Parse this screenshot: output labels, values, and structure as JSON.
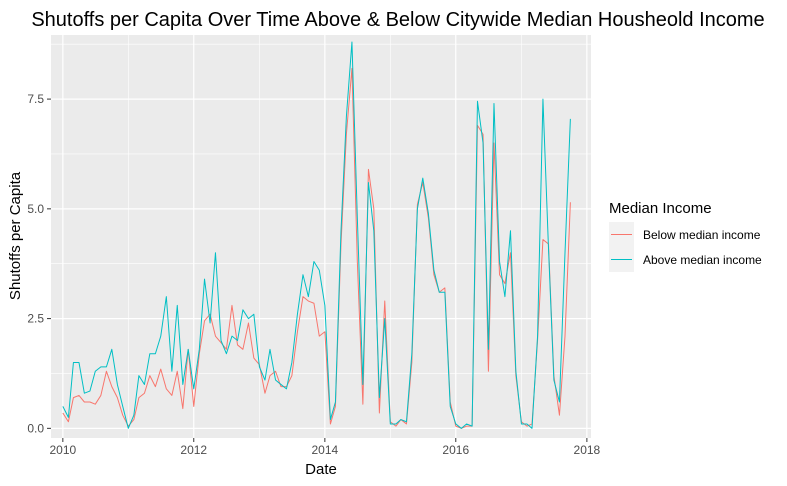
{
  "chart_data": {
    "type": "line",
    "title": "Shutoffs per Capita Over Time Above & Below Citywide Median Housheold Income",
    "xlabel": "Date",
    "ylabel": "Shutoffs per Capita",
    "xlim": [
      "2009-10-27",
      "2018-01-24"
    ],
    "ylim": [
      -0.22,
      8.96
    ],
    "x_ticks": [
      {
        "value": "2010-01-01",
        "label": "2010"
      },
      {
        "value": "2012-01-01",
        "label": "2012"
      },
      {
        "value": "2014-01-01",
        "label": "2014"
      },
      {
        "value": "2016-01-01",
        "label": "2016"
      },
      {
        "value": "2018-01-01",
        "label": "2018"
      }
    ],
    "y_ticks": [
      {
        "value": 0,
        "label": "0.0"
      },
      {
        "value": 2.5,
        "label": "2.5"
      },
      {
        "value": 5,
        "label": "5.0"
      },
      {
        "value": 7.5,
        "label": "7.5"
      }
    ],
    "grid": true,
    "background": "#ebebeb",
    "legend": {
      "title": "Median Income",
      "placement": "right"
    },
    "series": [
      {
        "name": "Below median income",
        "color": "#F8766D",
        "points": [
          [
            "2010-01-01",
            0.35
          ],
          [
            "2010-02-01",
            0.15
          ],
          [
            "2010-03-01",
            0.7
          ],
          [
            "2010-04-01",
            0.75
          ],
          [
            "2010-05-01",
            0.6
          ],
          [
            "2010-06-01",
            0.6
          ],
          [
            "2010-07-01",
            0.55
          ],
          [
            "2010-08-01",
            0.75
          ],
          [
            "2010-09-01",
            1.3
          ],
          [
            "2010-10-01",
            0.95
          ],
          [
            "2010-11-01",
            0.7
          ],
          [
            "2010-12-01",
            0.3
          ],
          [
            "2011-01-01",
            0.05
          ],
          [
            "2011-02-01",
            0.2
          ],
          [
            "2011-03-01",
            0.7
          ],
          [
            "2011-04-01",
            0.8
          ],
          [
            "2011-05-01",
            1.2
          ],
          [
            "2011-06-01",
            0.95
          ],
          [
            "2011-07-01",
            1.35
          ],
          [
            "2011-08-01",
            0.9
          ],
          [
            "2011-09-01",
            0.75
          ],
          [
            "2011-10-01",
            1.3
          ],
          [
            "2011-11-01",
            0.45
          ],
          [
            "2011-12-01",
            1.8
          ],
          [
            "2012-01-01",
            0.5
          ],
          [
            "2012-02-01",
            1.7
          ],
          [
            "2012-03-01",
            2.45
          ],
          [
            "2012-04-01",
            2.6
          ],
          [
            "2012-05-01",
            2.1
          ],
          [
            "2012-06-01",
            1.95
          ],
          [
            "2012-07-01",
            1.8
          ],
          [
            "2012-08-01",
            2.8
          ],
          [
            "2012-09-01",
            1.9
          ],
          [
            "2012-10-01",
            1.8
          ],
          [
            "2012-11-01",
            2.4
          ],
          [
            "2012-12-01",
            1.6
          ],
          [
            "2013-01-01",
            1.45
          ],
          [
            "2013-02-01",
            0.8
          ],
          [
            "2013-03-01",
            1.2
          ],
          [
            "2013-04-01",
            1.3
          ],
          [
            "2013-05-01",
            0.95
          ],
          [
            "2013-06-01",
            0.95
          ],
          [
            "2013-07-01",
            1.2
          ],
          [
            "2013-08-01",
            2.2
          ],
          [
            "2013-09-01",
            3.0
          ],
          [
            "2013-10-01",
            2.9
          ],
          [
            "2013-11-01",
            2.85
          ],
          [
            "2013-12-01",
            2.1
          ],
          [
            "2014-01-01",
            2.2
          ],
          [
            "2014-02-01",
            0.1
          ],
          [
            "2014-03-01",
            0.5
          ],
          [
            "2014-04-01",
            4.2
          ],
          [
            "2014-05-01",
            6.7
          ],
          [
            "2014-06-01",
            8.2
          ],
          [
            "2014-07-01",
            3.8
          ],
          [
            "2014-08-01",
            0.55
          ],
          [
            "2014-09-01",
            5.9
          ],
          [
            "2014-10-01",
            5.0
          ],
          [
            "2014-11-01",
            0.35
          ],
          [
            "2014-12-01",
            2.9
          ],
          [
            "2015-01-01",
            0.15
          ],
          [
            "2015-02-01",
            0.05
          ],
          [
            "2015-03-01",
            0.2
          ],
          [
            "2015-04-01",
            0.1
          ],
          [
            "2015-05-01",
            1.5
          ],
          [
            "2015-06-01",
            5.1
          ],
          [
            "2015-07-01",
            5.6
          ],
          [
            "2015-08-01",
            4.8
          ],
          [
            "2015-09-01",
            3.5
          ],
          [
            "2015-10-01",
            3.1
          ],
          [
            "2015-11-01",
            3.2
          ],
          [
            "2015-12-01",
            0.6
          ],
          [
            "2016-01-01",
            0.05
          ],
          [
            "2016-02-01",
            0.0
          ],
          [
            "2016-03-01",
            0.05
          ],
          [
            "2016-04-01",
            0.05
          ],
          [
            "2016-05-01",
            6.9
          ],
          [
            "2016-06-01",
            6.7
          ],
          [
            "2016-07-01",
            1.3
          ],
          [
            "2016-08-01",
            6.5
          ],
          [
            "2016-09-01",
            3.5
          ],
          [
            "2016-10-01",
            3.3
          ],
          [
            "2016-11-01",
            4.0
          ],
          [
            "2016-12-01",
            1.2
          ],
          [
            "2017-01-01",
            0.15
          ],
          [
            "2017-02-01",
            0.05
          ],
          [
            "2017-03-01",
            0.1
          ],
          [
            "2017-04-01",
            2.0
          ],
          [
            "2017-05-01",
            4.3
          ],
          [
            "2017-06-01",
            4.2
          ],
          [
            "2017-07-01",
            1.2
          ],
          [
            "2017-08-01",
            0.3
          ],
          [
            "2017-09-01",
            2.1
          ],
          [
            "2017-10-01",
            5.15
          ]
        ]
      },
      {
        "name": "Above median income",
        "color": "#00BFC4",
        "points": [
          [
            "2010-01-01",
            0.5
          ],
          [
            "2010-02-01",
            0.25
          ],
          [
            "2010-03-01",
            1.5
          ],
          [
            "2010-04-01",
            1.5
          ],
          [
            "2010-05-01",
            0.8
          ],
          [
            "2010-06-01",
            0.85
          ],
          [
            "2010-07-01",
            1.3
          ],
          [
            "2010-08-01",
            1.4
          ],
          [
            "2010-09-01",
            1.4
          ],
          [
            "2010-10-01",
            1.8
          ],
          [
            "2010-11-01",
            1.0
          ],
          [
            "2010-12-01",
            0.5
          ],
          [
            "2011-01-01",
            0.0
          ],
          [
            "2011-02-01",
            0.3
          ],
          [
            "2011-03-01",
            1.2
          ],
          [
            "2011-04-01",
            1.0
          ],
          [
            "2011-05-01",
            1.7
          ],
          [
            "2011-06-01",
            1.7
          ],
          [
            "2011-07-01",
            2.1
          ],
          [
            "2011-08-01",
            3.0
          ],
          [
            "2011-09-01",
            1.3
          ],
          [
            "2011-10-01",
            2.8
          ],
          [
            "2011-11-01",
            1.0
          ],
          [
            "2011-12-01",
            1.8
          ],
          [
            "2012-01-01",
            0.9
          ],
          [
            "2012-02-01",
            1.8
          ],
          [
            "2012-03-01",
            3.4
          ],
          [
            "2012-04-01",
            2.4
          ],
          [
            "2012-05-01",
            4.0
          ],
          [
            "2012-06-01",
            2.0
          ],
          [
            "2012-07-01",
            1.7
          ],
          [
            "2012-08-01",
            2.1
          ],
          [
            "2012-09-01",
            2.0
          ],
          [
            "2012-10-01",
            2.7
          ],
          [
            "2012-11-01",
            2.5
          ],
          [
            "2012-12-01",
            2.6
          ],
          [
            "2013-01-01",
            1.4
          ],
          [
            "2013-02-01",
            1.1
          ],
          [
            "2013-03-01",
            1.8
          ],
          [
            "2013-04-01",
            1.1
          ],
          [
            "2013-05-01",
            1.0
          ],
          [
            "2013-06-01",
            0.9
          ],
          [
            "2013-07-01",
            1.5
          ],
          [
            "2013-08-01",
            2.6
          ],
          [
            "2013-09-01",
            3.5
          ],
          [
            "2013-10-01",
            3.0
          ],
          [
            "2013-11-01",
            3.8
          ],
          [
            "2013-12-01",
            3.6
          ],
          [
            "2014-01-01",
            2.8
          ],
          [
            "2014-02-01",
            0.2
          ],
          [
            "2014-03-01",
            0.6
          ],
          [
            "2014-04-01",
            4.5
          ],
          [
            "2014-05-01",
            7.1
          ],
          [
            "2014-06-01",
            8.8
          ],
          [
            "2014-07-01",
            4.8
          ],
          [
            "2014-08-01",
            1.0
          ],
          [
            "2014-09-01",
            5.6
          ],
          [
            "2014-10-01",
            4.5
          ],
          [
            "2014-11-01",
            0.7
          ],
          [
            "2014-12-01",
            2.5
          ],
          [
            "2015-01-01",
            0.1
          ],
          [
            "2015-02-01",
            0.1
          ],
          [
            "2015-03-01",
            0.2
          ],
          [
            "2015-04-01",
            0.15
          ],
          [
            "2015-05-01",
            1.7
          ],
          [
            "2015-06-01",
            5.0
          ],
          [
            "2015-07-01",
            5.7
          ],
          [
            "2015-08-01",
            4.9
          ],
          [
            "2015-09-01",
            3.6
          ],
          [
            "2015-10-01",
            3.1
          ],
          [
            "2015-11-01",
            3.1
          ],
          [
            "2015-12-01",
            0.5
          ],
          [
            "2016-01-01",
            0.1
          ],
          [
            "2016-02-01",
            0.0
          ],
          [
            "2016-03-01",
            0.1
          ],
          [
            "2016-04-01",
            0.05
          ],
          [
            "2016-05-01",
            7.45
          ],
          [
            "2016-06-01",
            6.5
          ],
          [
            "2016-07-01",
            1.8
          ],
          [
            "2016-08-01",
            7.4
          ],
          [
            "2016-09-01",
            3.8
          ],
          [
            "2016-10-01",
            3.0
          ],
          [
            "2016-11-01",
            4.5
          ],
          [
            "2016-12-01",
            1.3
          ],
          [
            "2017-01-01",
            0.1
          ],
          [
            "2017-02-01",
            0.1
          ],
          [
            "2017-03-01",
            0.0
          ],
          [
            "2017-04-01",
            2.1
          ],
          [
            "2017-05-01",
            7.5
          ],
          [
            "2017-06-01",
            4.1
          ],
          [
            "2017-07-01",
            1.1
          ],
          [
            "2017-08-01",
            0.6
          ],
          [
            "2017-09-01",
            4.0
          ],
          [
            "2017-10-01",
            7.05
          ]
        ]
      }
    ]
  }
}
